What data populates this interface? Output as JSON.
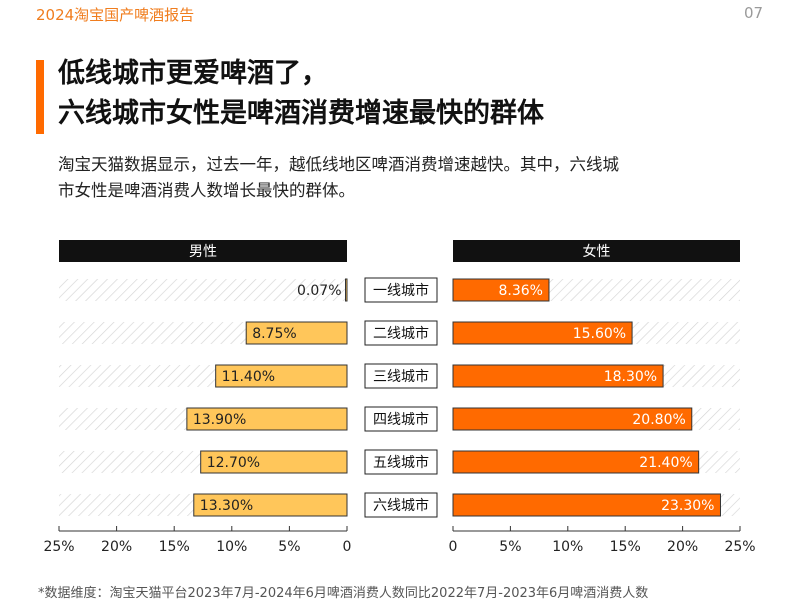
{
  "header": {
    "report_label": "2024淘宝国产啤酒报告",
    "page_number": "07"
  },
  "title": {
    "line1": "低线城市更爱啤酒了，",
    "line2": "六线城市女性是啤酒消费增速最快的群体"
  },
  "subtitle": {
    "line1": "淘宝天猫数据显示，过去一年，越低线地区啤酒消费增速越快。其中，六线城",
    "line2": "市女性是啤酒消费人数增长最快的群体。"
  },
  "chart_data": {
    "type": "bar",
    "orientation": "horizontal",
    "layout": "butterfly",
    "categories": [
      "一线城市",
      "二线城市",
      "三线城市",
      "四线城市",
      "五线城市",
      "六线城市"
    ],
    "series": [
      {
        "name": "男性",
        "values": [
          0.07,
          8.75,
          11.4,
          13.9,
          12.7,
          13.3
        ],
        "labels": [
          "0.07%",
          "8.75%",
          "11.40%",
          "13.90%",
          "12.70%",
          "13.30%"
        ],
        "color": "#ffc65a"
      },
      {
        "name": "女性",
        "values": [
          8.36,
          15.6,
          18.3,
          20.8,
          21.4,
          23.3
        ],
        "labels": [
          "8.36%",
          "15.60%",
          "18.30%",
          "20.80%",
          "21.40%",
          "23.30%"
        ],
        "color": "#ff6a00"
      }
    ],
    "xlim": [
      0,
      25
    ],
    "left_ticks": [
      "25%",
      "20%",
      "15%",
      "10%",
      "5%",
      "0"
    ],
    "right_ticks": [
      "0",
      "5%",
      "10%",
      "15%",
      "20%",
      "25%"
    ],
    "value_unit": "%"
  },
  "colors": {
    "accent": "#ff6a00",
    "male": "#ffc65a",
    "female": "#ff6a00",
    "header_bar": "#111111",
    "hatch": "#d4d4d4"
  },
  "footnote": "*数据维度：淘宝天猫平台2023年7月-2024年6月啤酒消费人数同比2022年7月-2023年6月啤酒消费人数"
}
